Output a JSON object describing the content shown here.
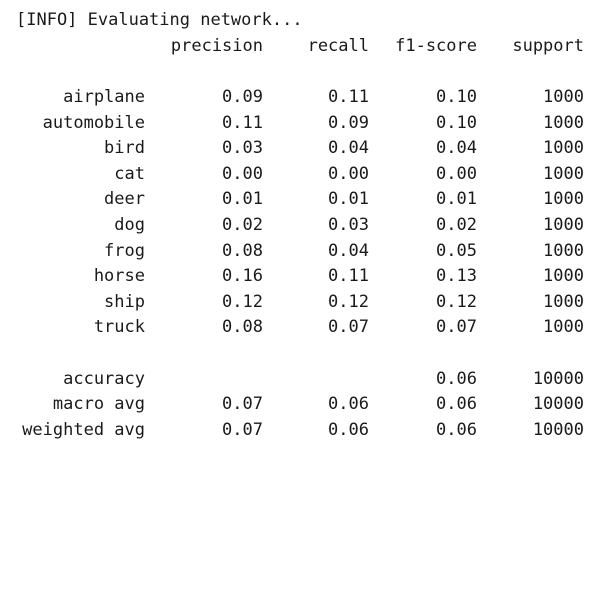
{
  "info_line": "[INFO] Evaluating network...",
  "header": [
    "precision",
    "recall",
    "f1-score",
    "support"
  ],
  "rows": [
    {
      "label": "airplane",
      "precision": "0.09",
      "recall": "0.11",
      "f1": "0.10",
      "support": "1000"
    },
    {
      "label": "automobile",
      "precision": "0.11",
      "recall": "0.09",
      "f1": "0.10",
      "support": "1000"
    },
    {
      "label": "bird",
      "precision": "0.03",
      "recall": "0.04",
      "f1": "0.04",
      "support": "1000"
    },
    {
      "label": "cat",
      "precision": "0.00",
      "recall": "0.00",
      "f1": "0.00",
      "support": "1000"
    },
    {
      "label": "deer",
      "precision": "0.01",
      "recall": "0.01",
      "f1": "0.01",
      "support": "1000"
    },
    {
      "label": "dog",
      "precision": "0.02",
      "recall": "0.03",
      "f1": "0.02",
      "support": "1000"
    },
    {
      "label": "frog",
      "precision": "0.08",
      "recall": "0.04",
      "f1": "0.05",
      "support": "1000"
    },
    {
      "label": "horse",
      "precision": "0.16",
      "recall": "0.11",
      "f1": "0.13",
      "support": "1000"
    },
    {
      "label": "ship",
      "precision": "0.12",
      "recall": "0.12",
      "f1": "0.12",
      "support": "1000"
    },
    {
      "label": "truck",
      "precision": "0.08",
      "recall": "0.07",
      "f1": "0.07",
      "support": "1000"
    }
  ],
  "summary": [
    {
      "label": "accuracy",
      "precision": "",
      "recall": "",
      "f1": "0.06",
      "support": "10000"
    },
    {
      "label": "macro avg",
      "precision": "0.07",
      "recall": "0.06",
      "f1": "0.06",
      "support": "10000"
    },
    {
      "label": "weighted avg",
      "precision": "0.07",
      "recall": "0.06",
      "f1": "0.06",
      "support": "10000"
    }
  ]
}
